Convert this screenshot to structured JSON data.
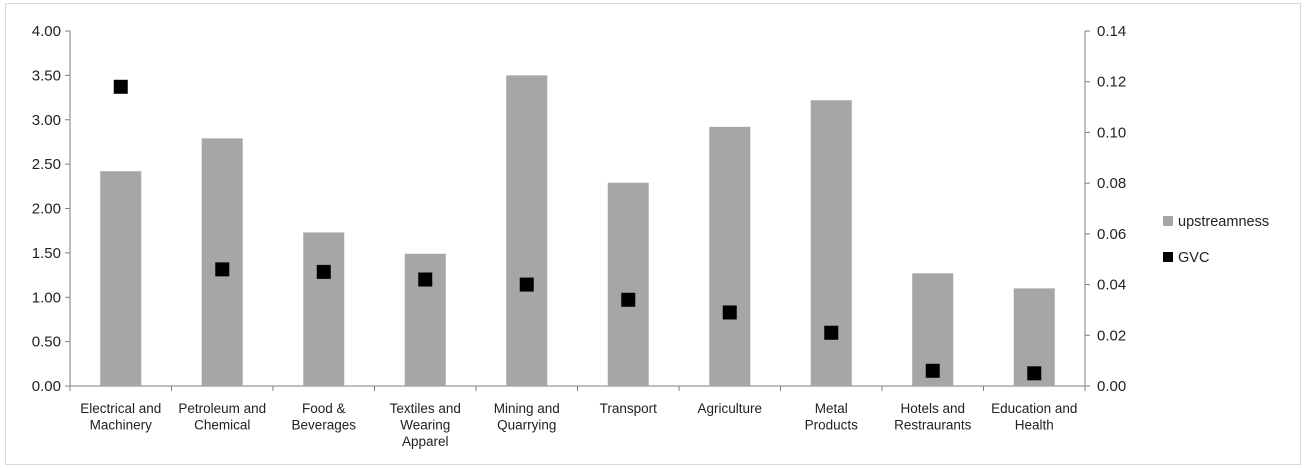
{
  "chart_data": {
    "type": "bar",
    "categories": [
      [
        "Electrical and",
        "Machinery"
      ],
      [
        "Petroleum and",
        "Chemical"
      ],
      [
        "Food &",
        "Beverages"
      ],
      [
        "Textiles and",
        "Wearing",
        "Apparel"
      ],
      [
        "Mining and",
        "Quarrying"
      ],
      [
        "Transport"
      ],
      [
        "Agriculture"
      ],
      [
        "Metal",
        "Products"
      ],
      [
        "Hotels and",
        "Restraurants"
      ],
      [
        "Education and",
        "Health"
      ]
    ],
    "series": [
      {
        "name": "upstreamness",
        "type": "bar",
        "axis": "left",
        "color": "#a6a6a6",
        "values": [
          2.42,
          2.79,
          1.73,
          1.49,
          3.5,
          2.29,
          2.92,
          3.22,
          1.27,
          1.1
        ]
      },
      {
        "name": "GVC",
        "type": "scatter",
        "marker": "square",
        "axis": "right",
        "color": "#000000",
        "values": [
          0.118,
          0.046,
          0.045,
          0.042,
          0.04,
          0.034,
          0.029,
          0.021,
          0.006,
          0.005
        ]
      }
    ],
    "y_left": {
      "ylim": [
        0,
        4
      ],
      "ticks": [
        "0.00",
        "0.50",
        "1.00",
        "1.50",
        "2.00",
        "2.50",
        "3.00",
        "3.50",
        "4.00"
      ]
    },
    "y_right": {
      "ylim": [
        0,
        0.14
      ],
      "ticks": [
        "0.00",
        "0.02",
        "0.04",
        "0.06",
        "0.08",
        "0.10",
        "0.12",
        "0.14"
      ]
    },
    "grid": false,
    "legend_position": "right"
  }
}
